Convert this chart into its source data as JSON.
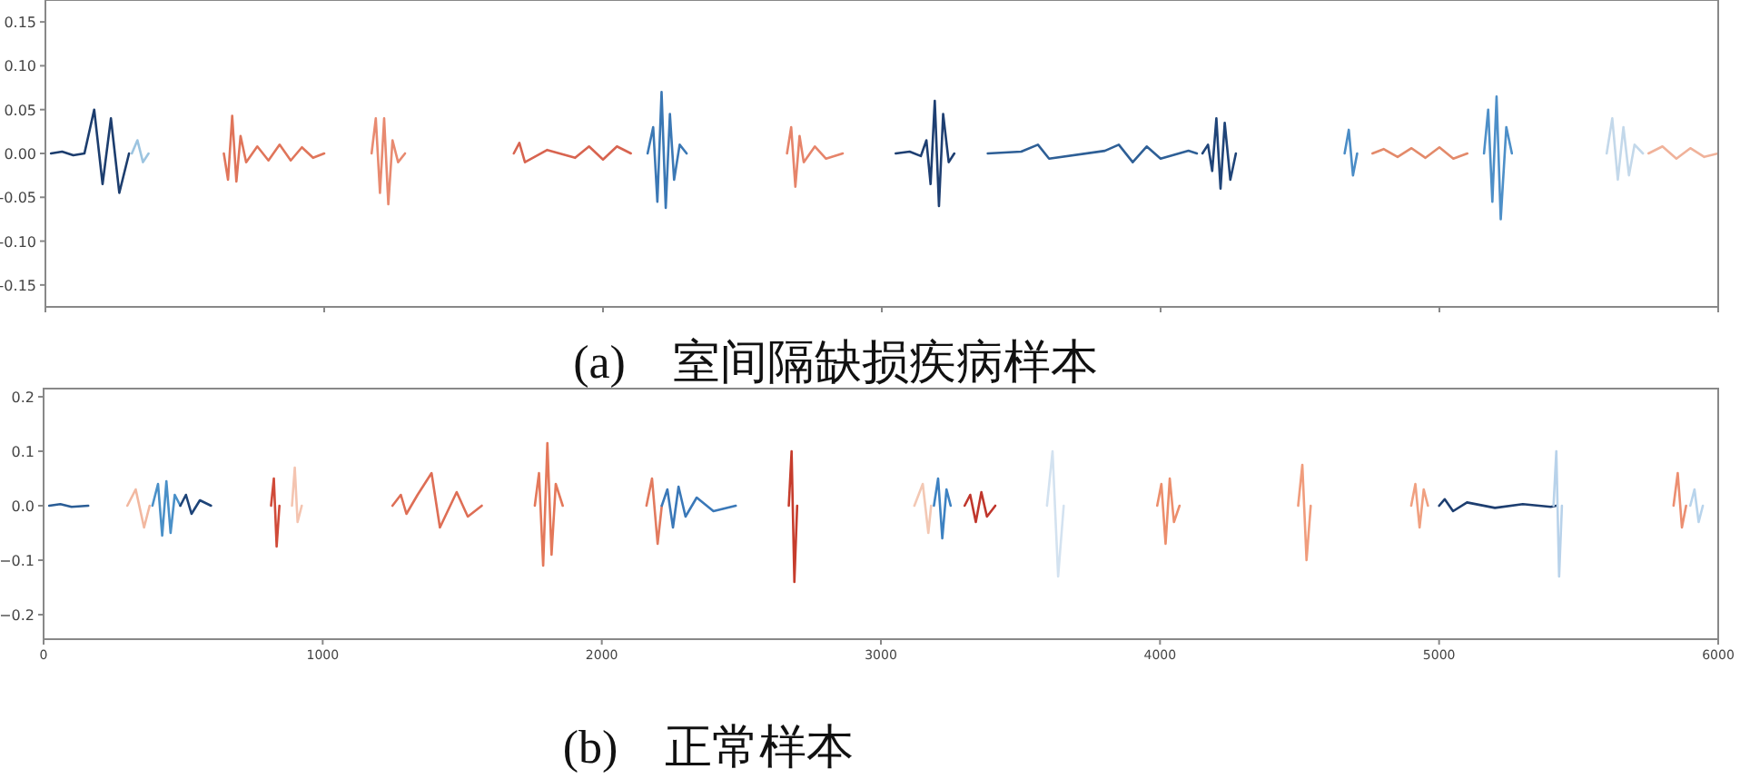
{
  "chart_data": [
    {
      "type": "line",
      "annotations": [
        "(a)　室间隔缺损疾病样本"
      ],
      "xlim": [
        0,
        6000
      ],
      "xticks": [
        {
          "value": 0,
          "label": null
        },
        {
          "value": 1000,
          "label": null
        },
        {
          "value": 2000,
          "label": null
        },
        {
          "value": 3000,
          "label": null
        },
        {
          "value": 4000,
          "label": null
        },
        {
          "value": 5000,
          "label": null
        },
        {
          "value": 6000,
          "label": null
        }
      ],
      "ylim": [
        -0.175,
        0.175
      ],
      "yticks": [
        {
          "value": -0.15,
          "label": "-0.15"
        },
        {
          "value": -0.1,
          "label": "-0.10"
        },
        {
          "value": -0.05,
          "label": "-0.05"
        },
        {
          "value": 0,
          "label": "0.00"
        },
        {
          "value": 0.05,
          "label": "0.05"
        },
        {
          "value": 0.1,
          "label": "0.10"
        },
        {
          "value": 0.15,
          "label": "0.15"
        }
      ],
      "tick_labels": "y",
      "grid": false,
      "series": [
        {
          "color": "#1c3d6e",
          "x": [
            20,
            60,
            100,
            140,
            175,
            205,
            235,
            265,
            300
          ],
          "values": [
            0,
            0.002,
            -0.002,
            0,
            0.05,
            -0.035,
            0.04,
            -0.045,
            0
          ]
        },
        {
          "color": "#9cc4e0",
          "x": [
            310,
            330,
            350,
            370
          ],
          "values": [
            0,
            0.015,
            -0.01,
            0
          ]
        },
        {
          "color": "#e0755a",
          "x": [
            640,
            655,
            670,
            685,
            700,
            720,
            760,
            800,
            840,
            880,
            920,
            960,
            1000
          ],
          "values": [
            0,
            -0.03,
            0.043,
            -0.032,
            0.02,
            -0.01,
            0.008,
            -0.008,
            0.01,
            -0.008,
            0.007,
            -0.005,
            0
          ]
        },
        {
          "color": "#e88a70",
          "x": [
            1170,
            1185,
            1200,
            1215,
            1230,
            1245,
            1265,
            1290
          ],
          "values": [
            0,
            0.04,
            -0.045,
            0.04,
            -0.058,
            0.015,
            -0.01,
            0
          ]
        },
        {
          "color": "#d86450",
          "x": [
            1680,
            1700,
            1720,
            1800,
            1900,
            1950,
            2000,
            2050,
            2100
          ],
          "values": [
            0,
            0.012,
            -0.01,
            0.004,
            -0.005,
            0.008,
            -0.007,
            0.008,
            0
          ]
        },
        {
          "color": "#3b78b5",
          "x": [
            2160,
            2180,
            2195,
            2210,
            2225,
            2240,
            2255,
            2275,
            2300
          ],
          "values": [
            0,
            0.03,
            -0.055,
            0.07,
            -0.062,
            0.045,
            -0.03,
            0.01,
            0
          ]
        },
        {
          "color": "#e6846a",
          "x": [
            2660,
            2675,
            2690,
            2705,
            2720,
            2760,
            2800,
            2860
          ],
          "values": [
            0,
            0.03,
            -0.038,
            0.02,
            -0.01,
            0.008,
            -0.006,
            0
          ]
        },
        {
          "color": "#1e3f72",
          "x": [
            3050,
            3100,
            3140,
            3160,
            3175,
            3190,
            3205,
            3220,
            3240,
            3260
          ],
          "values": [
            0,
            0.002,
            -0.003,
            0.015,
            -0.035,
            0.06,
            -0.06,
            0.045,
            -0.01,
            0
          ]
        },
        {
          "color": "#2e5f96",
          "x": [
            3380,
            3500,
            3560,
            3600,
            3800,
            3850,
            3900,
            3950,
            4000,
            4100,
            4130
          ],
          "values": [
            0,
            0.002,
            0.01,
            -0.006,
            0.003,
            0.01,
            -0.01,
            0.008,
            -0.006,
            0.003,
            0
          ]
        },
        {
          "color": "#1f4478",
          "x": [
            4150,
            4170,
            4185,
            4200,
            4215,
            4230,
            4250,
            4270
          ],
          "values": [
            0,
            0.01,
            -0.02,
            0.04,
            -0.04,
            0.035,
            -0.03,
            0
          ]
        },
        {
          "color": "#4a8cc6",
          "x": [
            4660,
            4675,
            4690,
            4705
          ],
          "values": [
            0,
            0.027,
            -0.025,
            0
          ]
        },
        {
          "color": "#e38a6a",
          "x": [
            4760,
            4800,
            4850,
            4900,
            4950,
            5000,
            5050,
            5100
          ],
          "values": [
            0,
            0.005,
            -0.004,
            0.006,
            -0.005,
            0.007,
            -0.006,
            0
          ]
        },
        {
          "color": "#4d8fc8",
          "x": [
            5160,
            5175,
            5190,
            5205,
            5220,
            5240,
            5260
          ],
          "values": [
            0,
            0.05,
            -0.055,
            0.065,
            -0.075,
            0.03,
            0
          ]
        },
        {
          "color": "#c3d8ea",
          "x": [
            5600,
            5620,
            5640,
            5660,
            5680,
            5700,
            5730
          ],
          "values": [
            0,
            0.04,
            -0.03,
            0.03,
            -0.025,
            0.01,
            0
          ]
        },
        {
          "color": "#f0b29a",
          "x": [
            5750,
            5800,
            5850,
            5900,
            5950,
            6000
          ],
          "values": [
            0,
            0.008,
            -0.006,
            0.006,
            -0.004,
            0
          ]
        }
      ]
    },
    {
      "type": "line",
      "annotations": [
        "(b)　正常样本"
      ],
      "xlim": [
        0,
        6000
      ],
      "xticks": [
        0,
        1000,
        2000,
        3000,
        4000,
        5000,
        6000
      ],
      "ylim": [
        -0.245,
        0.215
      ],
      "yticks": [
        {
          "value": -0.2,
          "label": "−0.2"
        },
        {
          "value": -0.1,
          "label": "−0.1"
        },
        {
          "value": 0,
          "label": "0.0"
        },
        {
          "value": 0.1,
          "label": "0.1"
        },
        {
          "value": 0.2,
          "label": "0.2"
        }
      ],
      "grid": false,
      "series": [
        {
          "color": "#2a5d96",
          "x": [
            20,
            60,
            100,
            160
          ],
          "values": [
            0,
            0.003,
            -0.002,
            0
          ]
        },
        {
          "color": "#f2b8a0",
          "x": [
            300,
            330,
            360,
            380
          ],
          "values": [
            0,
            0.03,
            -0.04,
            0
          ]
        },
        {
          "color": "#4a90c8",
          "x": [
            390,
            410,
            425,
            440,
            455,
            470,
            490
          ],
          "values": [
            0,
            0.04,
            -0.055,
            0.045,
            -0.05,
            0.02,
            0
          ]
        },
        {
          "color": "#1e4478",
          "x": [
            490,
            510,
            530,
            560,
            600
          ],
          "values": [
            0,
            0.02,
            -0.015,
            0.01,
            0
          ]
        },
        {
          "color": "#d04a38",
          "x": [
            815,
            825,
            835,
            845
          ],
          "values": [
            0,
            0.05,
            -0.075,
            0
          ]
        },
        {
          "color": "#f4c4b0",
          "x": [
            890,
            900,
            910,
            925
          ],
          "values": [
            0,
            0.07,
            -0.03,
            0
          ]
        },
        {
          "color": "#de6e55",
          "x": [
            1250,
            1280,
            1300,
            1340,
            1390,
            1420,
            1480,
            1520,
            1570
          ],
          "values": [
            0,
            0.02,
            -0.015,
            0.02,
            0.06,
            -0.04,
            0.025,
            -0.02,
            0
          ]
        },
        {
          "color": "#e4785a",
          "x": [
            1760,
            1775,
            1790,
            1805,
            1820,
            1835,
            1860
          ],
          "values": [
            0,
            0.06,
            -0.11,
            0.115,
            -0.09,
            0.04,
            0
          ]
        },
        {
          "color": "#e27a5e",
          "x": [
            2160,
            2180,
            2200,
            2215
          ],
          "values": [
            0,
            0.05,
            -0.07,
            0
          ]
        },
        {
          "color": "#3a78b8",
          "x": [
            2215,
            2235,
            2255,
            2275,
            2300,
            2340,
            2400,
            2480
          ],
          "values": [
            0,
            0.03,
            -0.04,
            0.035,
            -0.02,
            0.015,
            -0.01,
            0
          ]
        },
        {
          "color": "#c63c2c",
          "x": [
            2670,
            2680,
            2690,
            2700
          ],
          "values": [
            0,
            0.1,
            -0.14,
            0
          ]
        },
        {
          "color": "#f3c8b4",
          "x": [
            3120,
            3150,
            3170,
            3180
          ],
          "values": [
            0,
            0.04,
            -0.05,
            0
          ]
        },
        {
          "color": "#3d82c2",
          "x": [
            3190,
            3205,
            3220,
            3235,
            3250
          ],
          "values": [
            0,
            0.05,
            -0.06,
            0.03,
            0
          ]
        },
        {
          "color": "#c0362c",
          "x": [
            3300,
            3320,
            3340,
            3360,
            3380,
            3410
          ],
          "values": [
            0,
            0.02,
            -0.03,
            0.025,
            -0.02,
            0
          ]
        },
        {
          "color": "#d3e2f0",
          "x": [
            3595,
            3615,
            3635,
            3655
          ],
          "values": [
            0,
            0.1,
            -0.13,
            0
          ]
        },
        {
          "color": "#ec8e6c",
          "x": [
            3990,
            4005,
            4020,
            4035,
            4050,
            4070
          ],
          "values": [
            0,
            0.04,
            -0.07,
            0.05,
            -0.03,
            0
          ]
        },
        {
          "color": "#f09c7c",
          "x": [
            4495,
            4510,
            4525,
            4540
          ],
          "values": [
            0,
            0.075,
            -0.1,
            0
          ]
        },
        {
          "color": "#f0a080",
          "x": [
            4900,
            4915,
            4930,
            4945,
            4960
          ],
          "values": [
            0,
            0.04,
            -0.04,
            0.03,
            0
          ]
        },
        {
          "color": "#1d3e70",
          "x": [
            5000,
            5020,
            5050,
            5100,
            5200,
            5300,
            5400,
            5420
          ],
          "values": [
            0,
            0.012,
            -0.01,
            0.006,
            -0.004,
            0.003,
            -0.002,
            0
          ]
        },
        {
          "color": "#b8d2ea",
          "x": [
            5410,
            5420,
            5430,
            5440
          ],
          "values": [
            0,
            0.1,
            -0.13,
            0
          ]
        },
        {
          "color": "#ec8e70",
          "x": [
            5840,
            5855,
            5870,
            5885
          ],
          "values": [
            0,
            0.06,
            -0.04,
            0
          ]
        },
        {
          "color": "#b8d4ec",
          "x": [
            5900,
            5915,
            5930,
            5945
          ],
          "values": [
            0,
            0.03,
            -0.03,
            0
          ]
        }
      ]
    }
  ]
}
